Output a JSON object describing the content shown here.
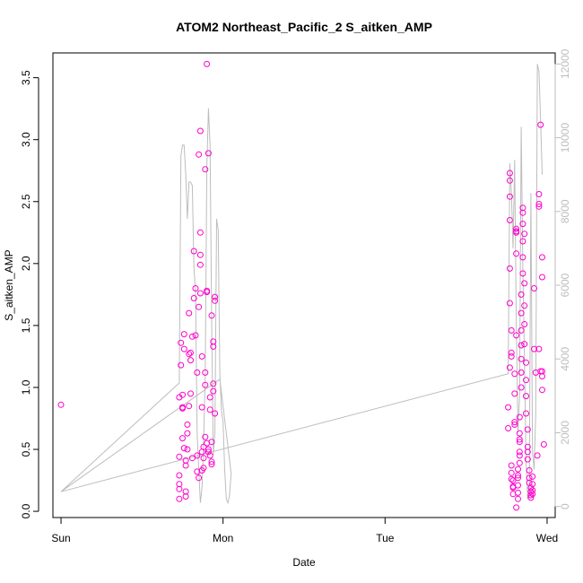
{
  "chart_data": {
    "type": "scatter",
    "title": "ATOM2 Northeast_Pacific_2 S_aitken_AMP",
    "xlabel": "Date",
    "ylabel": "S_aitken_AMP",
    "x_ticks": [
      "Sun",
      "Mon",
      "Tue",
      "Wed"
    ],
    "x_tick_positions": [
      0,
      1,
      2,
      3
    ],
    "xlim": [
      -0.05,
      3.05
    ],
    "ylim": [
      -0.05,
      3.7
    ],
    "y_ticks": [
      0.0,
      0.5,
      1.0,
      1.5,
      2.0,
      2.5,
      3.0,
      3.5
    ],
    "y_tick_labels": [
      "0.0",
      "0.5",
      "1.0",
      "1.5",
      "2.0",
      "2.5",
      "3.0",
      "3.5"
    ],
    "y2lim": [
      -300,
      12300
    ],
    "y2_ticks": [
      0,
      2000,
      4000,
      6000,
      8000,
      10000,
      12000
    ],
    "y2_tick_labels": [
      "0",
      "2000",
      "4000",
      "6000",
      "8000",
      "10000",
      "12000"
    ],
    "grid": false,
    "colors": {
      "points": "#ff00cc",
      "line": "#bdbdbd",
      "axes": "#000000",
      "right_axis": "#bdbdbd"
    },
    "series": [
      {
        "axis": "left",
        "type": "scatter",
        "points": [
          [
            0.0,
            0.86
          ],
          [
            0.73,
            0.1
          ],
          [
            0.73,
            0.18
          ],
          [
            0.73,
            0.22
          ],
          [
            0.73,
            0.29
          ],
          [
            0.73,
            0.44
          ],
          [
            0.73,
            0.92
          ],
          [
            0.74,
            1.18
          ],
          [
            0.74,
            1.36
          ],
          [
            0.75,
            0.59
          ],
          [
            0.75,
            0.83
          ],
          [
            0.75,
            0.84
          ],
          [
            0.75,
            0.94
          ],
          [
            0.76,
            1.31
          ],
          [
            0.76,
            1.43
          ],
          [
            0.76,
            0.51
          ],
          [
            0.77,
            0.12
          ],
          [
            0.77,
            0.16
          ],
          [
            0.77,
            0.37
          ],
          [
            0.77,
            0.41
          ],
          [
            0.78,
            0.5
          ],
          [
            0.78,
            0.63
          ],
          [
            0.78,
            0.7
          ],
          [
            0.79,
            0.85
          ],
          [
            0.79,
            1.27
          ],
          [
            0.79,
            1.6
          ],
          [
            0.8,
            0.95
          ],
          [
            0.8,
            1.22
          ],
          [
            0.8,
            1.28
          ],
          [
            0.81,
            1.41
          ],
          [
            0.81,
            0.43
          ],
          [
            0.82,
            1.72
          ],
          [
            0.82,
            2.1
          ],
          [
            0.83,
            1.8
          ],
          [
            0.83,
            1.42
          ],
          [
            0.84,
            1.12
          ],
          [
            0.84,
            0.45
          ],
          [
            0.84,
            0.32
          ],
          [
            0.85,
            0.27
          ],
          [
            0.85,
            2.88
          ],
          [
            0.85,
            1.65
          ],
          [
            0.86,
            1.76
          ],
          [
            0.86,
            1.99
          ],
          [
            0.86,
            2.07
          ],
          [
            0.86,
            3.07
          ],
          [
            0.86,
            2.25
          ],
          [
            0.87,
            0.33
          ],
          [
            0.87,
            0.48
          ],
          [
            0.87,
            0.84
          ],
          [
            0.87,
            1.25
          ],
          [
            0.88,
            0.35
          ],
          [
            0.88,
            0.43
          ],
          [
            0.88,
            0.52
          ],
          [
            0.89,
            0.6
          ],
          [
            0.89,
            1.12
          ],
          [
            0.89,
            2.76
          ],
          [
            0.89,
            1.02
          ],
          [
            0.9,
            1.77
          ],
          [
            0.9,
            1.78
          ],
          [
            0.9,
            3.61
          ],
          [
            0.9,
            0.55
          ],
          [
            0.91,
            0.48
          ],
          [
            0.91,
            0.5
          ],
          [
            0.91,
            2.89
          ],
          [
            0.92,
            0.92
          ],
          [
            0.92,
            0.82
          ],
          [
            0.92,
            0.45
          ],
          [
            0.93,
            0.38
          ],
          [
            0.93,
            0.4
          ],
          [
            0.93,
            0.56
          ],
          [
            0.93,
            1.58
          ],
          [
            0.94,
            1.03
          ],
          [
            0.94,
            1.37
          ],
          [
            0.94,
            1.33
          ],
          [
            0.94,
            0.97
          ],
          [
            0.95,
            1.7
          ],
          [
            0.95,
            1.73
          ],
          [
            0.95,
            0.79
          ],
          [
            2.76,
            0.67
          ],
          [
            2.76,
            0.84
          ],
          [
            2.77,
            1.16
          ],
          [
            2.77,
            1.68
          ],
          [
            2.77,
            1.96
          ],
          [
            2.77,
            2.54
          ],
          [
            2.77,
            2.67
          ],
          [
            2.77,
            2.73
          ],
          [
            2.77,
            2.35
          ],
          [
            2.78,
            1.46
          ],
          [
            2.78,
            1.28
          ],
          [
            2.78,
            1.25
          ],
          [
            2.78,
            0.37
          ],
          [
            2.78,
            0.31
          ],
          [
            2.78,
            0.26
          ],
          [
            2.79,
            0.14
          ],
          [
            2.79,
            0.19
          ],
          [
            2.79,
            0.2
          ],
          [
            2.79,
            0.25
          ],
          [
            2.8,
            0.72
          ],
          [
            2.8,
            0.7
          ],
          [
            2.8,
            0.95
          ],
          [
            2.8,
            1.11
          ],
          [
            2.81,
            1.42
          ],
          [
            2.81,
            2.08
          ],
          [
            2.81,
            2.26
          ],
          [
            2.81,
            2.28
          ],
          [
            2.81,
            2.25
          ],
          [
            2.81,
            0.03
          ],
          [
            2.82,
            0.1
          ],
          [
            2.82,
            0.15
          ],
          [
            2.82,
            0.21
          ],
          [
            2.82,
            0.27
          ],
          [
            2.82,
            0.29
          ],
          [
            2.82,
            0.34
          ],
          [
            2.83,
            0.39
          ],
          [
            2.83,
            0.45
          ],
          [
            2.83,
            0.48
          ],
          [
            2.83,
            0.56
          ],
          [
            2.83,
            0.58
          ],
          [
            2.83,
            0.63
          ],
          [
            2.83,
            0.76
          ],
          [
            2.84,
            1.0
          ],
          [
            2.84,
            1.12
          ],
          [
            2.84,
            1.23
          ],
          [
            2.84,
            1.34
          ],
          [
            2.84,
            1.46
          ],
          [
            2.84,
            1.6
          ],
          [
            2.84,
            1.75
          ],
          [
            2.85,
            1.92
          ],
          [
            2.85,
            2.05
          ],
          [
            2.85,
            2.18
          ],
          [
            2.85,
            2.32
          ],
          [
            2.85,
            2.45
          ],
          [
            2.85,
            2.41
          ],
          [
            2.86,
            2.24
          ],
          [
            2.86,
            1.84
          ],
          [
            2.86,
            1.66
          ],
          [
            2.86,
            1.51
          ],
          [
            2.86,
            1.35
          ],
          [
            2.87,
            1.2
          ],
          [
            2.87,
            1.06
          ],
          [
            2.87,
            0.93
          ],
          [
            2.87,
            0.79
          ],
          [
            2.88,
            0.66
          ],
          [
            2.88,
            0.52
          ],
          [
            2.88,
            0.48
          ],
          [
            2.88,
            0.42
          ],
          [
            2.89,
            0.33
          ],
          [
            2.89,
            0.27
          ],
          [
            2.89,
            0.23
          ],
          [
            2.9,
            0.19
          ],
          [
            2.9,
            0.16
          ],
          [
            2.9,
            0.13
          ],
          [
            2.9,
            0.11
          ],
          [
            2.91,
            0.14
          ],
          [
            2.91,
            0.17
          ],
          [
            2.91,
            0.22
          ],
          [
            2.91,
            0.28
          ],
          [
            2.92,
            1.8
          ],
          [
            2.92,
            1.31
          ],
          [
            2.93,
            1.12
          ],
          [
            2.94,
            0.45
          ],
          [
            2.95,
            2.48
          ],
          [
            2.95,
            2.46
          ],
          [
            2.95,
            2.56
          ],
          [
            2.95,
            1.31
          ],
          [
            2.96,
            3.12
          ],
          [
            2.96,
            1.13
          ],
          [
            2.97,
            1.89
          ],
          [
            2.97,
            2.05
          ],
          [
            2.97,
            1.13
          ],
          [
            2.97,
            1.09
          ],
          [
            2.97,
            0.98
          ],
          [
            2.98,
            0.54
          ]
        ]
      },
      {
        "axis": "right",
        "type": "line",
        "points": [
          [
            0.0,
            400
          ],
          [
            0.73,
            3350
          ],
          [
            0.74,
            9500
          ],
          [
            0.75,
            9800
          ],
          [
            0.76,
            9800
          ],
          [
            0.77,
            9000
          ],
          [
            0.78,
            7800
          ],
          [
            0.79,
            8800
          ],
          [
            0.8,
            8800
          ],
          [
            0.81,
            8700
          ],
          [
            0.82,
            6500
          ],
          [
            0.83,
            5800
          ],
          [
            0.84,
            2000
          ],
          [
            0.85,
            1000
          ],
          [
            0.86,
            100
          ],
          [
            0.87,
            500
          ],
          [
            0.88,
            1800
          ],
          [
            0.89,
            3500
          ],
          [
            0.9,
            9200
          ],
          [
            0.91,
            10800
          ],
          [
            0.92,
            9800
          ],
          [
            0.93,
            5000
          ],
          [
            0.94,
            1400
          ],
          [
            0.95,
            2000
          ],
          [
            0.96,
            7800
          ],
          [
            0.97,
            7500
          ],
          [
            0.98,
            3600
          ],
          [
            0.99,
            2600
          ],
          [
            1.0,
            2300
          ],
          [
            1.01,
            1000
          ],
          [
            1.02,
            200
          ],
          [
            1.03,
            100
          ],
          [
            1.04,
            300
          ],
          [
            1.05,
            900
          ],
          [
            0.98,
            3450
          ],
          [
            0.0,
            400
          ],
          [
            2.76,
            3600
          ],
          [
            2.77,
            9300
          ],
          [
            2.78,
            8500
          ],
          [
            2.79,
            7000
          ],
          [
            2.8,
            9400
          ],
          [
            2.81,
            5000
          ],
          [
            2.82,
            2000
          ],
          [
            2.83,
            3000
          ],
          [
            2.84,
            10300
          ],
          [
            2.85,
            6500
          ],
          [
            2.86,
            4000
          ],
          [
            2.87,
            1200
          ],
          [
            2.88,
            200
          ],
          [
            2.89,
            400
          ],
          [
            2.9,
            8500
          ],
          [
            2.91,
            1500
          ],
          [
            2.92,
            1000
          ],
          [
            2.93,
            2500
          ],
          [
            2.94,
            12000
          ],
          [
            2.95,
            11800
          ],
          [
            2.96,
            10500
          ],
          [
            2.97,
            9000
          ]
        ]
      }
    ]
  }
}
